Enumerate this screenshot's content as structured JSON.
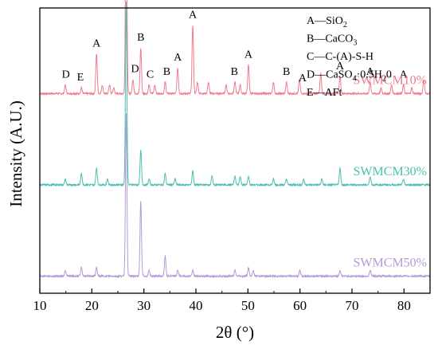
{
  "chart_data": {
    "type": "line",
    "title": "",
    "xlabel": "2θ (°)",
    "ylabel": "Intensity (A.U.)",
    "xlim": [
      10,
      85
    ],
    "xticks": [
      10,
      20,
      30,
      40,
      50,
      60,
      70,
      80
    ],
    "tick_labels": [
      "10",
      "20",
      "30",
      "40",
      "50",
      "60",
      "70",
      "80"
    ],
    "grid": false,
    "series": [
      {
        "name": "SWMCM10%",
        "color": "#f07b8f",
        "baseline": 0.7,
        "peaks": [
          {
            "x": 14.9,
            "h": 0.03
          },
          {
            "x": 18.0,
            "h": 0.02
          },
          {
            "x": 20.9,
            "h": 0.14
          },
          {
            "x": 22.0,
            "h": 0.03
          },
          {
            "x": 23.4,
            "h": 0.03
          },
          {
            "x": 24.2,
            "h": 0.02
          },
          {
            "x": 26.6,
            "h": 0.72
          },
          {
            "x": 27.9,
            "h": 0.05
          },
          {
            "x": 29.4,
            "h": 0.16
          },
          {
            "x": 31.0,
            "h": 0.03
          },
          {
            "x": 32.1,
            "h": 0.03
          },
          {
            "x": 34.1,
            "h": 0.04
          },
          {
            "x": 36.5,
            "h": 0.09
          },
          {
            "x": 39.4,
            "h": 0.24
          },
          {
            "x": 40.3,
            "h": 0.04
          },
          {
            "x": 42.4,
            "h": 0.04
          },
          {
            "x": 45.8,
            "h": 0.03
          },
          {
            "x": 47.5,
            "h": 0.04
          },
          {
            "x": 48.5,
            "h": 0.03
          },
          {
            "x": 50.1,
            "h": 0.1
          },
          {
            "x": 54.9,
            "h": 0.04
          },
          {
            "x": 57.4,
            "h": 0.04
          },
          {
            "x": 59.9,
            "h": 0.05
          },
          {
            "x": 64.0,
            "h": 0.07
          },
          {
            "x": 67.7,
            "h": 0.06
          },
          {
            "x": 73.5,
            "h": 0.04
          },
          {
            "x": 75.6,
            "h": 0.02
          },
          {
            "x": 77.6,
            "h": 0.03
          },
          {
            "x": 79.9,
            "h": 0.03
          },
          {
            "x": 81.5,
            "h": 0.02
          },
          {
            "x": 83.8,
            "h": 0.05
          }
        ]
      },
      {
        "name": "SWMCM30%",
        "color": "#4ac0b0",
        "baseline": 0.38,
        "peaks": [
          {
            "x": 14.9,
            "h": 0.02
          },
          {
            "x": 18.0,
            "h": 0.04
          },
          {
            "x": 20.9,
            "h": 0.06
          },
          {
            "x": 23.0,
            "h": 0.02
          },
          {
            "x": 26.6,
            "h": 0.64
          },
          {
            "x": 29.4,
            "h": 0.12
          },
          {
            "x": 31.0,
            "h": 0.02
          },
          {
            "x": 34.1,
            "h": 0.04
          },
          {
            "x": 36.0,
            "h": 0.02
          },
          {
            "x": 39.4,
            "h": 0.05
          },
          {
            "x": 43.1,
            "h": 0.03
          },
          {
            "x": 47.5,
            "h": 0.03
          },
          {
            "x": 48.5,
            "h": 0.03
          },
          {
            "x": 50.1,
            "h": 0.03
          },
          {
            "x": 54.9,
            "h": 0.02
          },
          {
            "x": 57.4,
            "h": 0.02
          },
          {
            "x": 60.7,
            "h": 0.02
          },
          {
            "x": 64.2,
            "h": 0.02
          },
          {
            "x": 67.7,
            "h": 0.06
          },
          {
            "x": 73.5,
            "h": 0.03
          },
          {
            "x": 79.9,
            "h": 0.02
          }
        ]
      },
      {
        "name": "SWMCM50%",
        "color": "#b49ad4",
        "baseline": 0.06,
        "peaks": [
          {
            "x": 14.9,
            "h": 0.02
          },
          {
            "x": 18.0,
            "h": 0.03
          },
          {
            "x": 20.9,
            "h": 0.03
          },
          {
            "x": 26.6,
            "h": 0.57
          },
          {
            "x": 29.4,
            "h": 0.26
          },
          {
            "x": 31.0,
            "h": 0.02
          },
          {
            "x": 34.1,
            "h": 0.07
          },
          {
            "x": 36.5,
            "h": 0.02
          },
          {
            "x": 39.4,
            "h": 0.02
          },
          {
            "x": 47.5,
            "h": 0.02
          },
          {
            "x": 50.1,
            "h": 0.03
          },
          {
            "x": 51.0,
            "h": 0.02
          },
          {
            "x": 60.0,
            "h": 0.02
          },
          {
            "x": 67.7,
            "h": 0.02
          },
          {
            "x": 73.5,
            "h": 0.02
          }
        ]
      }
    ],
    "peak_labels": [
      {
        "text": "D",
        "x": 15.0,
        "series": 0
      },
      {
        "text": "E",
        "x": 17.8,
        "series": 0
      },
      {
        "text": "A",
        "x": 20.9,
        "series": 0
      },
      {
        "text": "A",
        "x": 26.6,
        "series": 0
      },
      {
        "text": "D",
        "x": 28.3,
        "series": 0
      },
      {
        "text": "B",
        "x": 29.4,
        "series": 0
      },
      {
        "text": "C",
        "x": 31.2,
        "series": 0
      },
      {
        "text": "B",
        "x": 34.4,
        "series": 0
      },
      {
        "text": "A",
        "x": 36.5,
        "series": 0
      },
      {
        "text": "A",
        "x": 39.4,
        "series": 0
      },
      {
        "text": "B",
        "x": 47.4,
        "series": 0
      },
      {
        "text": "A",
        "x": 50.1,
        "series": 0
      },
      {
        "text": "B",
        "x": 57.4,
        "series": 0
      },
      {
        "text": "A",
        "x": 60.5,
        "series": 0
      },
      {
        "text": "A",
        "x": 67.7,
        "series": 0
      },
      {
        "text": "A",
        "x": 73.5,
        "series": 0
      },
      {
        "text": "A",
        "x": 79.9,
        "series": 0
      }
    ],
    "legend_position": "top-right",
    "phase_legend": [
      {
        "key": "A",
        "sep": "—",
        "formula": [
          {
            "t": "SiO"
          },
          {
            "t": "2",
            "sub": true
          }
        ]
      },
      {
        "key": "B",
        "sep": "—",
        "formula": [
          {
            "t": "CaCO"
          },
          {
            "t": "3",
            "sub": true
          }
        ]
      },
      {
        "key": "C",
        "sep": "—",
        "formula": [
          {
            "t": "C-(A)-S-H"
          }
        ]
      },
      {
        "key": "D",
        "sep": "—",
        "formula": [
          {
            "t": "CaSO"
          },
          {
            "t": "4",
            "sub": true
          },
          {
            "t": "·0.5H"
          },
          {
            "t": "2",
            "sub": true
          },
          {
            "t": "0"
          }
        ]
      },
      {
        "key": "E",
        "sep": "—",
        "formula": [
          {
            "t": "AFt"
          }
        ]
      }
    ],
    "series_labels": [
      {
        "text": "SWMCM10%",
        "series": 0
      },
      {
        "text": "SWMCM30%",
        "series": 1
      },
      {
        "text": "SWMCM50%",
        "series": 2
      }
    ]
  }
}
